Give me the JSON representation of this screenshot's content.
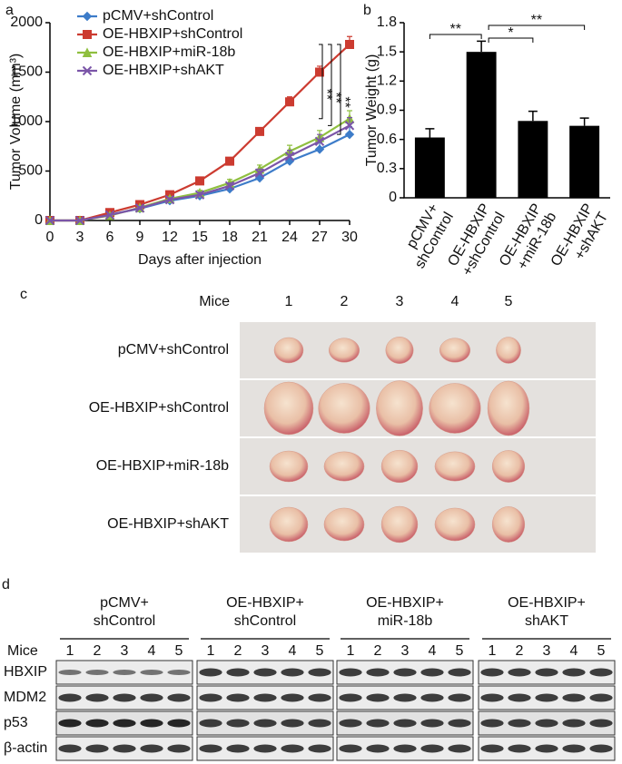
{
  "chart_data": [
    {
      "type": "line",
      "panel_label": "a",
      "x_label": "Days after injection",
      "y_label": "Tumor Volume (mm³)",
      "x": [
        0,
        3,
        6,
        9,
        12,
        15,
        18,
        21,
        24,
        27,
        30
      ],
      "series": [
        {
          "name": "pCMV+shControl",
          "color": "#3d7cc9",
          "marker": "diamond",
          "values": [
            0,
            0,
            60,
            120,
            200,
            250,
            320,
            430,
            600,
            720,
            870
          ],
          "errors": [
            0,
            0,
            10,
            15,
            20,
            25,
            30,
            40,
            60,
            70,
            80
          ]
        },
        {
          "name": "OE-HBXIP+shControl",
          "color": "#cc3b30",
          "marker": "square",
          "values": [
            0,
            0,
            80,
            160,
            260,
            400,
            600,
            900,
            1200,
            1500,
            1780
          ],
          "errors": [
            0,
            0,
            10,
            15,
            20,
            25,
            30,
            30,
            50,
            60,
            80
          ]
        },
        {
          "name": "OE-HBXIP+miR-18b",
          "color": "#8fbf3f",
          "marker": "triangle",
          "values": [
            0,
            0,
            50,
            130,
            220,
            280,
            380,
            520,
            700,
            840,
            1030
          ],
          "errors": [
            0,
            0,
            10,
            15,
            20,
            25,
            35,
            40,
            60,
            70,
            80
          ]
        },
        {
          "name": "OE-HBXIP+shAKT",
          "color": "#7b55a8",
          "marker": "cross",
          "values": [
            0,
            0,
            55,
            125,
            210,
            260,
            350,
            480,
            650,
            800,
            960
          ],
          "errors": [
            0,
            0,
            10,
            15,
            20,
            25,
            30,
            40,
            60,
            70,
            80
          ]
        }
      ],
      "xlim": [
        0,
        30
      ],
      "xticks": [
        0,
        3,
        6,
        9,
        12,
        15,
        18,
        21,
        24,
        27,
        30
      ],
      "ylim": [
        0,
        2000
      ],
      "yticks": [
        0,
        500,
        1000,
        1500,
        2000
      ],
      "legend": "upper left",
      "annotations": [
        "**",
        "**",
        "**"
      ]
    },
    {
      "type": "bar",
      "panel_label": "b",
      "y_label": "Tumor Weight (g)",
      "categories": [
        [
          "pCMV+",
          "shControl"
        ],
        [
          "OE-HBXIP",
          "+shControl"
        ],
        [
          "OE-HBXIP",
          "+miR-18b"
        ],
        [
          "OE-HBXIP",
          "+shAKT"
        ]
      ],
      "values": [
        0.62,
        1.5,
        0.79,
        0.74
      ],
      "errors": [
        0.09,
        0.11,
        0.1,
        0.08
      ],
      "color": "#000000",
      "ylim": [
        0,
        1.8
      ],
      "yticks": [
        0,
        0.3,
        0.6,
        0.9,
        1.2,
        1.5,
        1.8
      ],
      "annotations": [
        "**",
        "*",
        "**"
      ]
    }
  ],
  "photo_panel": {
    "panel_label": "c",
    "column_header": "Mice",
    "columns": [
      1,
      2,
      3,
      4,
      5
    ],
    "rows": [
      "pCMV+shControl",
      "OE-HBXIP+shControl",
      "OE-HBXIP+miR-18b",
      "OE-HBXIP+shAKT"
    ]
  },
  "blot_panel": {
    "panel_label": "d",
    "row_header": "Mice",
    "groups": [
      {
        "label": [
          "pCMV+",
          "shControl"
        ],
        "lanes": [
          1,
          2,
          3,
          4,
          5
        ]
      },
      {
        "label": [
          "OE-HBXIP+",
          "shControl"
        ],
        "lanes": [
          1,
          2,
          3,
          4,
          5
        ]
      },
      {
        "label": [
          "OE-HBXIP+",
          "miR-18b"
        ],
        "lanes": [
          1,
          2,
          3,
          4,
          5
        ]
      },
      {
        "label": [
          "OE-HBXIP+",
          "shAKT"
        ],
        "lanes": [
          1,
          2,
          3,
          4,
          5
        ]
      }
    ],
    "proteins": [
      "HBXIP",
      "MDM2",
      "p53",
      "β-actin"
    ]
  }
}
